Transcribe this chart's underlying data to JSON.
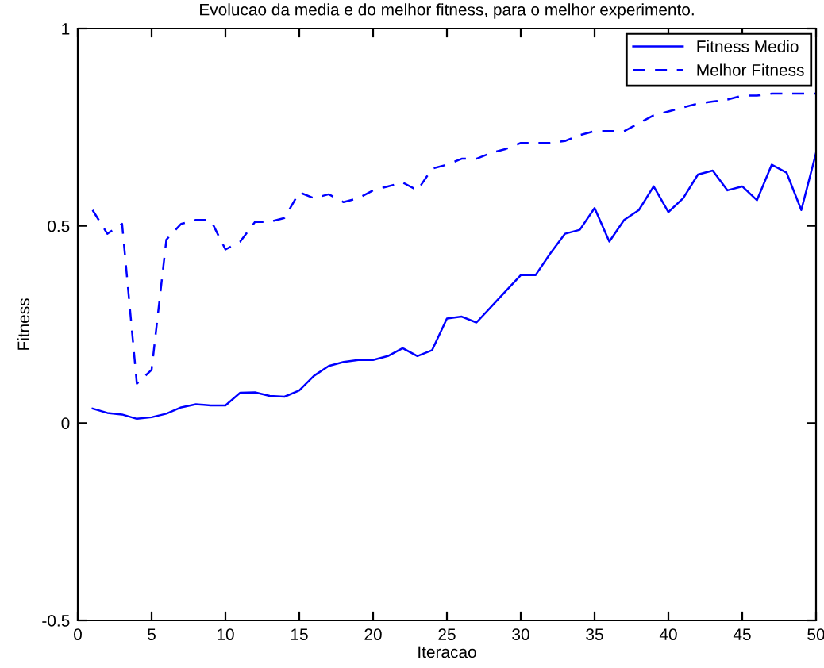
{
  "chart_data": {
    "type": "line",
    "title": "Evolucao da media e do melhor fitness, para o melhor experimento.",
    "xlabel": "Iteracao",
    "ylabel": "Fitness",
    "x": [
      1,
      2,
      3,
      4,
      5,
      6,
      7,
      8,
      9,
      10,
      11,
      12,
      13,
      14,
      15,
      16,
      17,
      18,
      19,
      20,
      21,
      22,
      23,
      24,
      25,
      26,
      27,
      28,
      29,
      30,
      31,
      32,
      33,
      34,
      35,
      36,
      37,
      38,
      39,
      40,
      41,
      42,
      43,
      44,
      45,
      46,
      47,
      48,
      49,
      50
    ],
    "series": [
      {
        "name": "Fitness Medio",
        "color": "#0000ff",
        "line_style": "solid",
        "values": [
          0.037,
          0.026,
          0.022,
          0.011,
          0.015,
          0.024,
          0.04,
          0.048,
          0.045,
          0.045,
          0.077,
          0.078,
          0.069,
          0.067,
          0.083,
          0.12,
          0.145,
          0.155,
          0.16,
          0.16,
          0.17,
          0.19,
          0.17,
          0.185,
          0.265,
          0.27,
          0.255,
          0.295,
          0.335,
          0.375,
          0.375,
          0.43,
          0.48,
          0.49,
          0.545,
          0.46,
          0.515,
          0.54,
          0.6,
          0.535,
          0.57,
          0.63,
          0.64,
          0.59,
          0.6,
          0.565,
          0.655,
          0.635,
          0.54,
          0.685
        ]
      },
      {
        "name": "Melhor Fitness",
        "color": "#0000ff",
        "line_style": "dashed",
        "values": [
          0.54,
          0.48,
          0.505,
          0.1,
          0.135,
          0.465,
          0.505,
          0.515,
          0.515,
          0.44,
          0.46,
          0.51,
          0.51,
          0.52,
          0.585,
          0.57,
          0.58,
          0.56,
          0.57,
          0.59,
          0.6,
          0.61,
          0.59,
          0.645,
          0.655,
          0.67,
          0.67,
          0.685,
          0.695,
          0.71,
          0.71,
          0.71,
          0.715,
          0.73,
          0.74,
          0.74,
          0.74,
          0.76,
          0.78,
          0.79,
          0.8,
          0.81,
          0.815,
          0.82,
          0.83,
          0.83,
          0.835,
          0.835,
          0.835,
          0.835
        ]
      }
    ],
    "xlim": [
      0,
      50
    ],
    "xticks": [
      0,
      5,
      10,
      15,
      20,
      25,
      30,
      35,
      40,
      45,
      50
    ],
    "ylim": [
      -0.5,
      1
    ],
    "yticks": [
      -0.5,
      0,
      0.5,
      1
    ],
    "grid": false,
    "legend": "top right"
  }
}
